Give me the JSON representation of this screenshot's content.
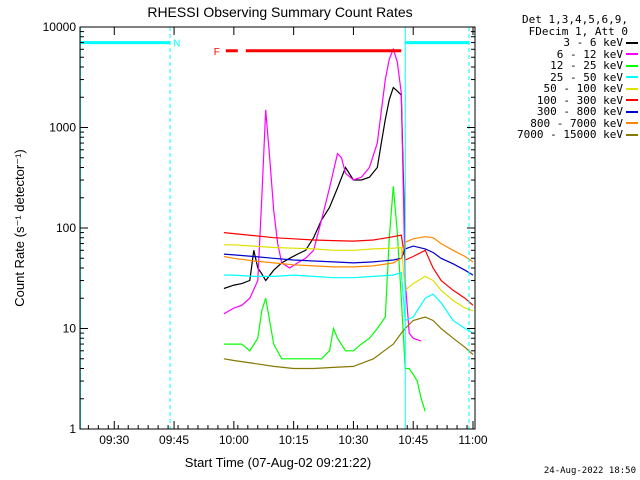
{
  "chart_data": {
    "type": "line",
    "title": "RHESSI Observing Summary Count Rates",
    "xlabel": "Start Time (07-Aug-02 09:21:22)",
    "ylabel": "Count Rate (s⁻¹ detector⁻¹)",
    "x_unit": "minutes after 09:00",
    "xlim": [
      21.4,
      120.5
    ],
    "ylim": [
      1,
      10000
    ],
    "yscale": "log",
    "x_ticks": [
      {
        "x": 30,
        "label": "09:30"
      },
      {
        "x": 45,
        "label": "09:45"
      },
      {
        "x": 60,
        "label": "10:00"
      },
      {
        "x": 75,
        "label": "10:15"
      },
      {
        "x": 90,
        "label": "10:30"
      },
      {
        "x": 105,
        "label": "10:45"
      },
      {
        "x": 120,
        "label": "11:00"
      }
    ],
    "y_ticks": [
      {
        "y": 1,
        "label": "1"
      },
      {
        "y": 10,
        "label": "10"
      },
      {
        "y": 100,
        "label": "100"
      },
      {
        "y": 1000,
        "label": "1000"
      },
      {
        "y": 10000,
        "label": "10000"
      }
    ],
    "legend_header": [
      "Det 1,3,4,5,6,9,",
      "FDecim 1, Att 0"
    ],
    "series": [
      {
        "name": "3 - 6 keV",
        "color": "#000000",
        "x": [
          57.5,
          60,
          62,
          64,
          65,
          66,
          67,
          68,
          70,
          72,
          74,
          76,
          78,
          80,
          82,
          84,
          86,
          88,
          90,
          92,
          94,
          96,
          97,
          98,
          99,
          100,
          101,
          102,
          103
        ],
        "y": [
          25,
          27,
          28,
          30,
          60,
          40,
          35,
          30,
          38,
          45,
          50,
          55,
          60,
          80,
          120,
          160,
          250,
          400,
          300,
          300,
          320,
          400,
          700,
          1200,
          1900,
          2500,
          2300,
          2100,
          60
        ]
      },
      {
        "name": "6 - 12 keV",
        "color": "#ff00ff",
        "x": [
          57.5,
          60,
          62,
          64,
          66,
          67,
          68,
          69,
          70,
          71,
          72,
          74,
          76,
          78,
          80,
          82,
          84,
          86,
          87,
          88,
          90,
          92,
          94,
          96,
          98,
          99,
          100,
          101,
          102,
          103,
          104,
          105,
          107
        ],
        "y": [
          14,
          16,
          17,
          20,
          30,
          200,
          1500,
          500,
          150,
          70,
          45,
          40,
          45,
          50,
          60,
          120,
          250,
          550,
          500,
          350,
          300,
          320,
          400,
          700,
          3000,
          4800,
          6000,
          4500,
          2200,
          30,
          9,
          8,
          7.5
        ]
      },
      {
        "name": "12 - 25 keV",
        "color": "#00ff00",
        "x": [
          57.5,
          60,
          62,
          64,
          66,
          67,
          68,
          70,
          72,
          74,
          76,
          78,
          80,
          82,
          84,
          85,
          86,
          88,
          90,
          92,
          94,
          96,
          98,
          99,
          100,
          101,
          102,
          103,
          104,
          105,
          106,
          107,
          108
        ],
        "y": [
          7,
          7,
          7,
          6,
          8,
          15,
          20,
          7,
          5,
          5,
          5,
          5,
          5,
          5,
          6,
          10,
          8,
          6,
          6,
          7,
          8,
          10,
          13,
          80,
          260,
          90,
          20,
          4,
          4,
          3.5,
          3,
          2,
          1.5
        ]
      },
      {
        "name": "25 - 50 keV",
        "color": "#00ffff",
        "x": [
          57.5,
          60,
          65,
          70,
          75,
          80,
          85,
          90,
          95,
          100,
          102,
          103,
          105,
          108,
          110,
          112,
          115,
          118,
          120
        ],
        "y": [
          34,
          34,
          33,
          33,
          34,
          33,
          32,
          32,
          33,
          34,
          36,
          12,
          13,
          20,
          22,
          18,
          12,
          10,
          9
        ]
      },
      {
        "name": "50 - 100 keV",
        "color": "#e0e000",
        "x": [
          57.5,
          60,
          65,
          70,
          75,
          80,
          85,
          90,
          95,
          100,
          102,
          103,
          105,
          108,
          110,
          112,
          115,
          118,
          120
        ],
        "y": [
          68,
          68,
          66,
          64,
          63,
          62,
          60,
          60,
          62,
          63,
          64,
          24,
          28,
          33,
          30,
          24,
          19,
          16,
          15
        ]
      },
      {
        "name": "100 - 300 keV",
        "color": "#ff0000",
        "x": [
          57.5,
          60,
          65,
          70,
          75,
          80,
          85,
          90,
          95,
          100,
          102,
          103,
          105,
          108,
          110,
          112,
          115,
          118,
          120
        ],
        "y": [
          90,
          88,
          84,
          80,
          78,
          76,
          75,
          74,
          76,
          82,
          85,
          48,
          52,
          60,
          40,
          30,
          24,
          20,
          17
        ]
      },
      {
        "name": "300 - 800 keV",
        "color": "#0000cc",
        "x": [
          57.5,
          60,
          65,
          70,
          75,
          80,
          85,
          90,
          95,
          100,
          102,
          103,
          105,
          108,
          110,
          112,
          115,
          118,
          120
        ],
        "y": [
          55,
          54,
          52,
          50,
          48,
          47,
          46,
          45,
          46,
          48,
          50,
          62,
          66,
          62,
          57,
          50,
          44,
          38,
          34
        ]
      },
      {
        "name": "800 - 7000 keV",
        "color": "#ff8800",
        "x": [
          57.5,
          60,
          65,
          70,
          75,
          80,
          85,
          90,
          95,
          100,
          102,
          103,
          105,
          108,
          110,
          112,
          115,
          118,
          120
        ],
        "y": [
          52,
          50,
          47,
          45,
          43,
          42,
          41,
          41,
          42,
          45,
          50,
          72,
          78,
          82,
          80,
          70,
          60,
          52,
          46
        ]
      },
      {
        "name": "7000 - 15000 keV",
        "color": "#887700",
        "x": [
          57.5,
          60,
          65,
          70,
          75,
          80,
          85,
          90,
          95,
          100,
          102,
          103,
          105,
          108,
          110,
          112,
          115,
          118,
          120
        ],
        "y": [
          5,
          4.8,
          4.5,
          4.2,
          4,
          4,
          4.1,
          4.2,
          5,
          7,
          9,
          10,
          12,
          13,
          12,
          10,
          8,
          6.5,
          5.5
        ]
      }
    ],
    "annotations": {
      "attenuator_bars": [
        {
          "label": "N",
          "color": "#00ffff",
          "x_start": 21.4,
          "x_end": 44,
          "y": 7000
        },
        {
          "label": "",
          "color": "#00ffff",
          "x_start": 103,
          "x_end": 119,
          "y": 7000
        }
      ],
      "flare_flag": {
        "label": "F",
        "color": "#ff0000",
        "x_start": 63,
        "x_end": 102,
        "y": 5800
      },
      "vlines": [
        {
          "x": 21.5,
          "style": "solid",
          "color": "#00ffff"
        },
        {
          "x": 44,
          "style": "dashed",
          "color": "#00ffff"
        },
        {
          "x": 103,
          "style": "solid",
          "color": "#00ffff"
        },
        {
          "x": 119,
          "style": "dashed",
          "color": "#00ffff"
        }
      ]
    }
  },
  "footer_stamp": "24-Aug-2022 18:50"
}
